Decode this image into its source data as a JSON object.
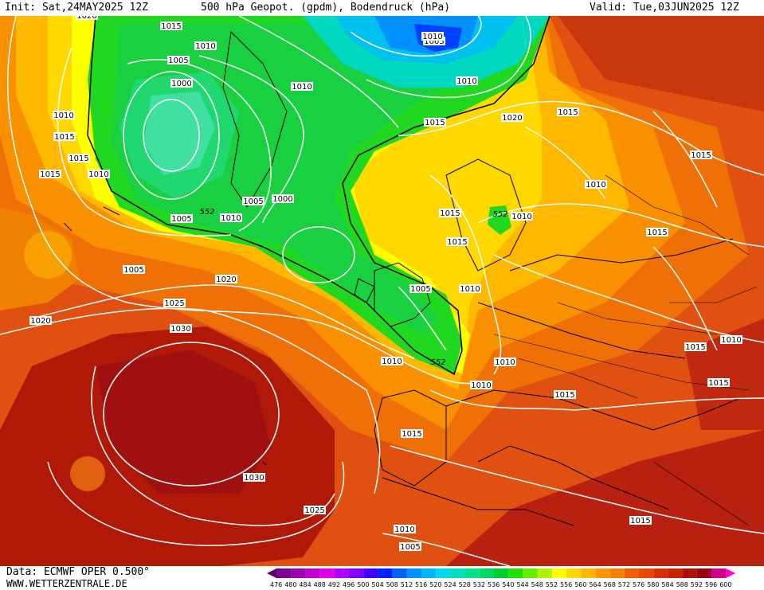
{
  "header": {
    "init": "Init: Sat,24MAY2025 12Z",
    "title": "500 hPa Geopot. (gpdm), Bodendruck (hPa)",
    "valid": "Valid: Tue,03JUN2025 12Z"
  },
  "footer": {
    "source": "Data: ECMWF OPER 0.500°",
    "website": "WWW.WETTERZENTRALE.DE"
  },
  "legend": {
    "values": [
      "476",
      "480",
      "484",
      "488",
      "492",
      "496",
      "500",
      "504",
      "508",
      "512",
      "516",
      "520",
      "524",
      "528",
      "532",
      "536",
      "540",
      "544",
      "548",
      "552",
      "556",
      "560",
      "564",
      "568",
      "572",
      "576",
      "580",
      "584",
      "588",
      "592",
      "596",
      "600"
    ],
    "colors": [
      "#5a0070",
      "#7a0090",
      "#9b00b0",
      "#c000d0",
      "#e000e8",
      "#b000ff",
      "#8000ff",
      "#4000ff",
      "#0020ff",
      "#0060ff",
      "#0090ff",
      "#00b8ff",
      "#00d8f0",
      "#00e0c0",
      "#00e090",
      "#00d860",
      "#00d030",
      "#20e000",
      "#60f000",
      "#b0f000",
      "#ffff00",
      "#ffd800",
      "#ffb800",
      "#ff9800",
      "#f88000",
      "#f06000",
      "#e84800",
      "#d83000",
      "#c82000",
      "#b01000",
      "#980018",
      "#d0008a",
      "#ff00cc"
    ]
  },
  "map_labels": {
    "isobars": [
      "1020",
      "1015",
      "1010",
      "1005",
      "1000",
      "1010",
      "1005",
      "1010",
      "1015",
      "1020",
      "1015",
      "1010",
      "1005",
      "1000",
      "1005",
      "1010",
      "1015",
      "1015",
      "1010",
      "1015",
      "1015",
      "1005",
      "1010",
      "1010",
      "1015",
      "1015",
      "1010",
      "1015",
      "1020",
      "1025",
      "1030",
      "1020",
      "1030",
      "1025",
      "1010",
      "1010",
      "1010",
      "1015",
      "1010",
      "1015",
      "1010",
      "1005",
      "1015",
      "1015",
      "1015",
      "1005",
      "1010"
    ],
    "contour_552": [
      "552",
      "552",
      "552"
    ]
  }
}
